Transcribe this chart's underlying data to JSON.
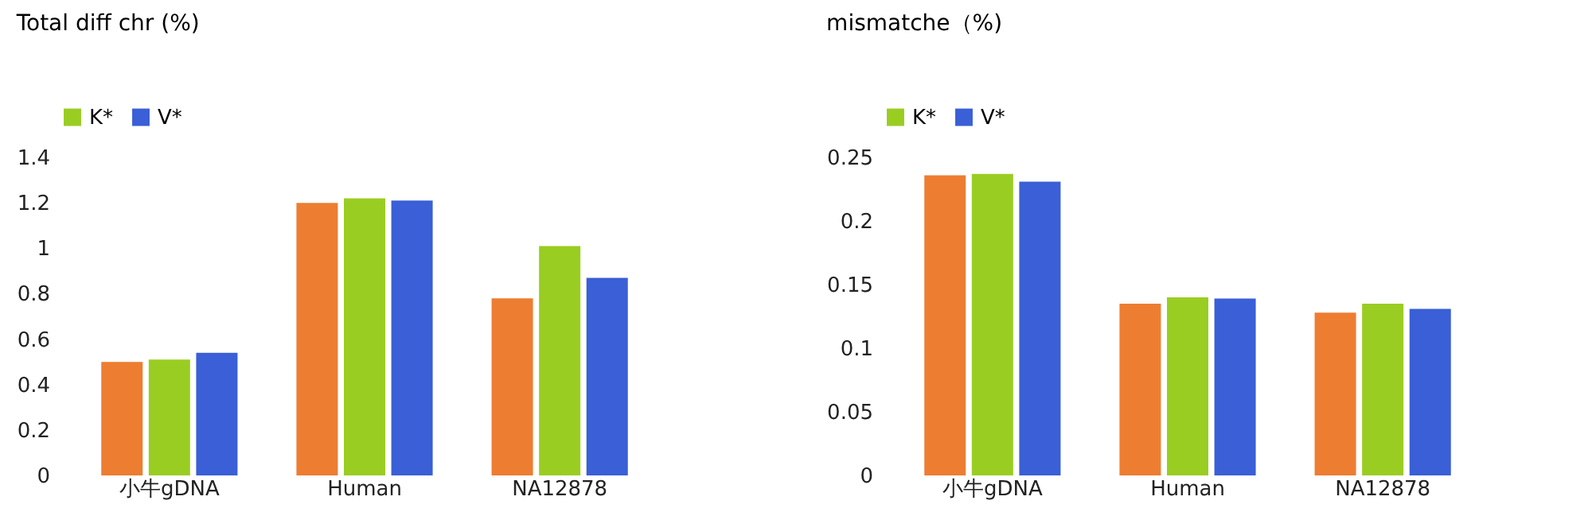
{
  "chart_data": [
    {
      "type": "bar",
      "title": "Total diff chr (%)",
      "categories": [
        "小牛gDNA",
        "Human",
        "NA12878"
      ],
      "series": [
        {
          "name": null,
          "color": "#ed7d31",
          "values": [
            0.5,
            1.2,
            0.78
          ]
        },
        {
          "name": "K*",
          "color": "#9acd22",
          "values": [
            0.51,
            1.22,
            1.01
          ]
        },
        {
          "name": "V*",
          "color": "#3a5fd6",
          "values": [
            0.54,
            1.21,
            0.87
          ]
        }
      ],
      "ylim": [
        0,
        1.4
      ],
      "yticks": [
        0,
        0.2,
        0.4,
        0.6,
        0.8,
        1,
        1.2,
        1.4
      ],
      "grid": false,
      "legend": "top left"
    },
    {
      "type": "bar",
      "title": "mismatche（%)",
      "categories": [
        "小牛gDNA",
        "Human",
        "NA12878"
      ],
      "series": [
        {
          "name": null,
          "color": "#ed7d31",
          "values": [
            0.236,
            0.135,
            0.128
          ]
        },
        {
          "name": "K*",
          "color": "#9acd22",
          "values": [
            0.237,
            0.14,
            0.135
          ]
        },
        {
          "name": "V*",
          "color": "#3a5fd6",
          "values": [
            0.231,
            0.139,
            0.131
          ]
        }
      ],
      "ylim": [
        0,
        0.25
      ],
      "yticks": [
        0,
        0.05,
        0.1,
        0.15,
        0.2,
        0.25
      ],
      "grid": false,
      "legend": "top left"
    }
  ]
}
